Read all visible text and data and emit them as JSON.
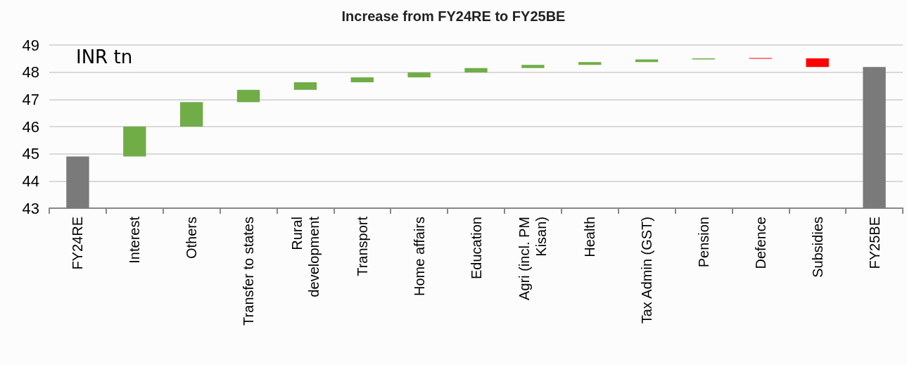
{
  "chart_data": {
    "type": "bar",
    "title": "Increase from FY24RE to FY25BE",
    "annotations": [
      "INR tn"
    ],
    "categories": [
      "FY24RE",
      "Interest",
      "Others",
      "Transfer to states",
      "Rural\ndevelopment",
      "Transport",
      "Home affairs",
      "Education",
      "Agri (incl. PM\nKisan)",
      "Health",
      "Tax Admin (GST)",
      "Pension",
      "Defence",
      "Subsidies",
      "FY25BE"
    ],
    "base": [
      43,
      44.9,
      46.0,
      46.9,
      47.35,
      47.63,
      47.81,
      47.99,
      48.15,
      48.27,
      48.37,
      48.47,
      48.52,
      48.51,
      43
    ],
    "values": [
      1.9,
      1.1,
      0.9,
      0.45,
      0.28,
      0.18,
      0.18,
      0.16,
      0.12,
      0.1,
      0.1,
      0.04,
      -0.01,
      -0.32,
      5.19
    ],
    "colors": [
      "#7a7a7a",
      "#70ad47",
      "#70ad47",
      "#70ad47",
      "#70ad47",
      "#70ad47",
      "#70ad47",
      "#70ad47",
      "#70ad47",
      "#70ad47",
      "#70ad47",
      "#70ad47",
      "#ff0000",
      "#ff0000",
      "#7a7a7a"
    ],
    "ylim": [
      43,
      49
    ],
    "yticks": [
      43,
      44,
      45,
      46,
      47,
      48,
      49
    ],
    "grid": "y"
  }
}
